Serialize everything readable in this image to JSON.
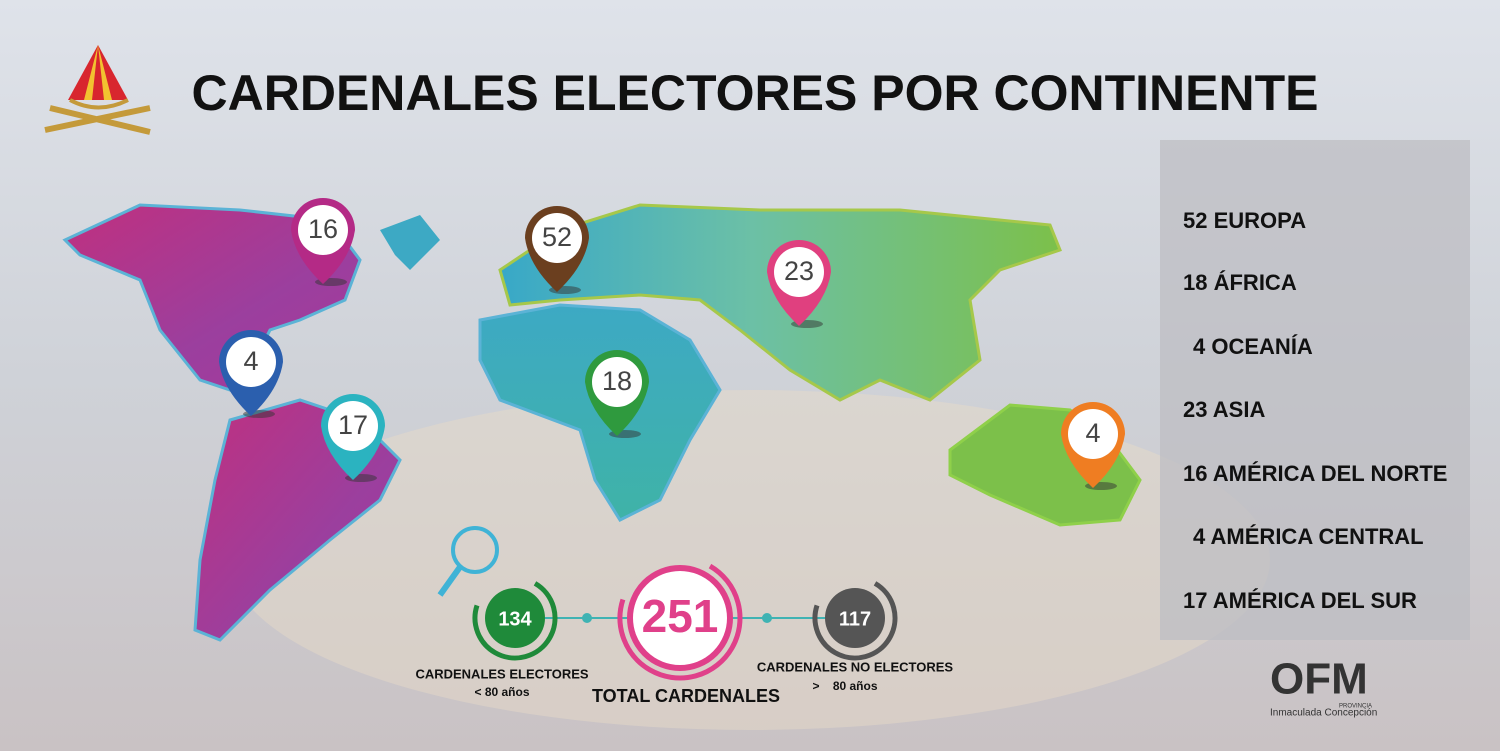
{
  "title": "CARDENALES ELECTORES POR CONTINENTE",
  "map_pins": [
    {
      "value": 16,
      "color": "#b42a86"
    },
    {
      "value": 52,
      "color": "#6b3f1f"
    },
    {
      "value": 23,
      "color": "#e0407f"
    },
    {
      "value": 4,
      "color": "#2b5fae"
    },
    {
      "value": 18,
      "color": "#2f9a3e"
    },
    {
      "value": 17,
      "color": "#2bb3c0"
    },
    {
      "value": 4,
      "color": "#ef7d22"
    }
  ],
  "legend": [
    {
      "count": 52,
      "name": "EUROPA"
    },
    {
      "count": 18,
      "name": "ÁFRICA"
    },
    {
      "count": 4,
      "name": "OCEANÍA"
    },
    {
      "count": 23,
      "name": "ASIA"
    },
    {
      "count": 16,
      "name": "AMÉRICA DEL NORTE"
    },
    {
      "count": 4,
      "name": "AMÉRICA CENTRAL"
    },
    {
      "count": 17,
      "name": "AMÉRICA DEL SUR"
    }
  ],
  "stats": {
    "electores": {
      "value": 134,
      "label": "CARDENALES ELECTORES",
      "sub": "< 80 años",
      "color": "#1f8a3a"
    },
    "total": {
      "value": 251,
      "label": "TOTAL CARDENALES",
      "color": "#e0408a"
    },
    "no_electores": {
      "value": 117,
      "label": "CARDENALES NO ELECTORES",
      "sub": ">    80 años",
      "color": "#555555"
    }
  },
  "logo": {
    "mark": "OFM",
    "provincia": "PROVINCIA",
    "name": "Inmaculada Concepción"
  }
}
